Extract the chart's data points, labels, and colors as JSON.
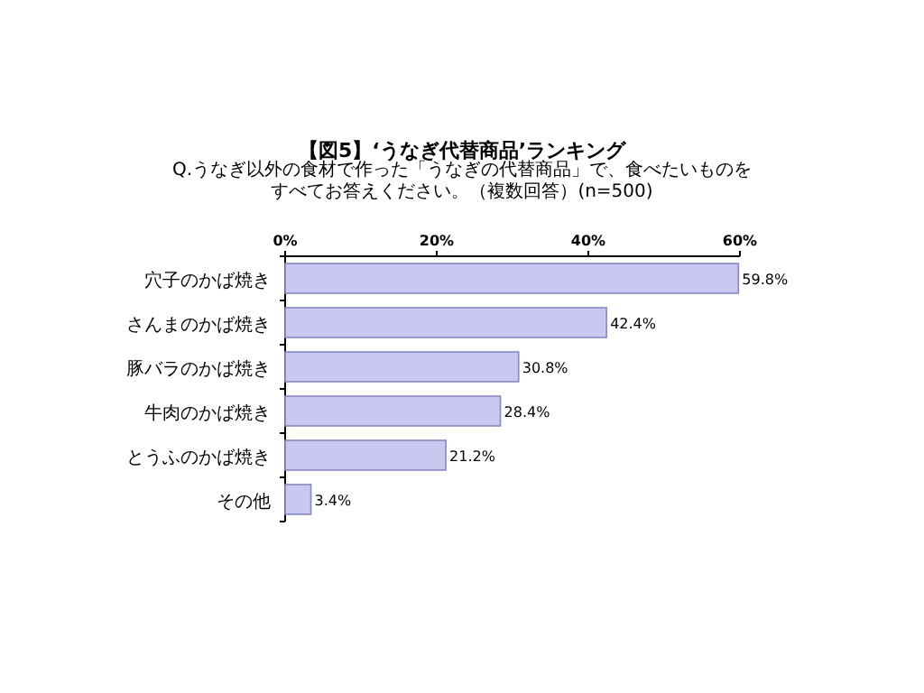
{
  "chart_data": {
    "type": "bar",
    "orientation": "horizontal",
    "title": "【図5】‘うなぎ代替商品’ランキング",
    "subtitle": "Q.うなぎ以外の食材で作った「うなぎの代替商品」で、食べたいものをすべてお答えください。（複数回答）(n=500)",
    "categories": [
      "穴子のかば焼き",
      "さんまのかば焼き",
      "豚バラのかば焼き",
      "牛肉のかば焼き",
      "とうふのかば焼き",
      "その他"
    ],
    "values": [
      59.8,
      42.4,
      30.8,
      28.4,
      21.2,
      3.4
    ],
    "value_labels": [
      "59.8%",
      "42.4%",
      "30.8%",
      "28.4%",
      "21.2%",
      "3.4%"
    ],
    "color": "#c8c8f0",
    "xlim": [
      0,
      60
    ],
    "xticks": [
      {
        "value": 0,
        "label": "0%"
      },
      {
        "value": 20,
        "label": "20%"
      },
      {
        "value": 40,
        "label": "40%"
      },
      {
        "value": 60,
        "label": "60%"
      }
    ],
    "grid": false
  }
}
